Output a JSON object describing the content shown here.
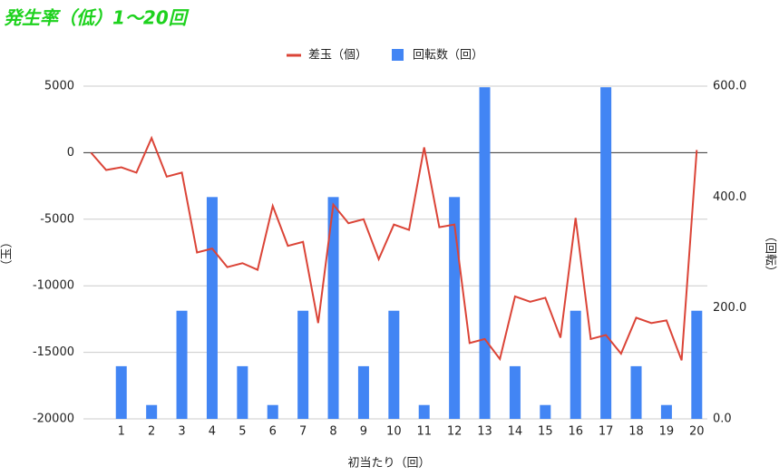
{
  "chart_data": {
    "type": "combo",
    "title": "発生率（低）1〜20回",
    "x_label": "初当たり（回）",
    "y_label": "（玉）",
    "y2_label": "（回転）",
    "xlim": [
      -0.25,
      20.35
    ],
    "xticks": [
      1,
      2,
      3,
      4,
      5,
      6,
      7,
      8,
      9,
      10,
      11,
      12,
      13,
      14,
      15,
      16,
      17,
      18,
      19,
      20
    ],
    "ylim": [
      -20000,
      5000
    ],
    "yticks": [
      -20000,
      -15000,
      -10000,
      -5000,
      0,
      5000
    ],
    "y2lim": [
      0,
      600
    ],
    "y2ticks": [
      {
        "value": 0,
        "label": "0.0"
      },
      {
        "value": 200,
        "label": "200.0"
      },
      {
        "value": 400,
        "label": "400.0"
      },
      {
        "value": 600,
        "label": "600.0"
      }
    ],
    "grid": true,
    "legend": "top",
    "series": [
      {
        "name": "差玉（個）",
        "type": "line",
        "color": "#db4437",
        "x": [
          0,
          0.5,
          1,
          1.5,
          2,
          2.5,
          3,
          3.5,
          4,
          4.5,
          5,
          5.5,
          6,
          6.5,
          7,
          7.5,
          8,
          8.5,
          9,
          9.5,
          10,
          10.5,
          11,
          11.5,
          12,
          12.5,
          13,
          13.5,
          14,
          14.5,
          15,
          15.5,
          16,
          16.5,
          17,
          17.5,
          18,
          18.5,
          19,
          19.5,
          20
        ],
        "values": [
          0,
          -1300,
          -1100,
          -1500,
          1100,
          -1800,
          -1500,
          -7500,
          -7200,
          -8600,
          -8300,
          -8800,
          -4000,
          -7000,
          -6700,
          -12800,
          -3900,
          -5300,
          -5000,
          -8000,
          -5400,
          -5800,
          400,
          -5600,
          -5400,
          -14300,
          -14000,
          -15500,
          -10800,
          -11200,
          -10900,
          -13900,
          -4900,
          -14000,
          -13700,
          -15100,
          -12400,
          -12800,
          -12600,
          -15600,
          200
        ]
      },
      {
        "name": "回転数（回）",
        "type": "bar",
        "axis": "y2",
        "color": "#4285f4",
        "x": [
          1,
          2,
          3,
          4,
          5,
          6,
          7,
          8,
          9,
          10,
          11,
          12,
          13,
          14,
          15,
          16,
          17,
          18,
          19,
          20
        ],
        "values": [
          95,
          25,
          195,
          400,
          95,
          25,
          195,
          400,
          95,
          195,
          25,
          400,
          598,
          95,
          25,
          195,
          598,
          95,
          25,
          195
        ]
      }
    ]
  }
}
